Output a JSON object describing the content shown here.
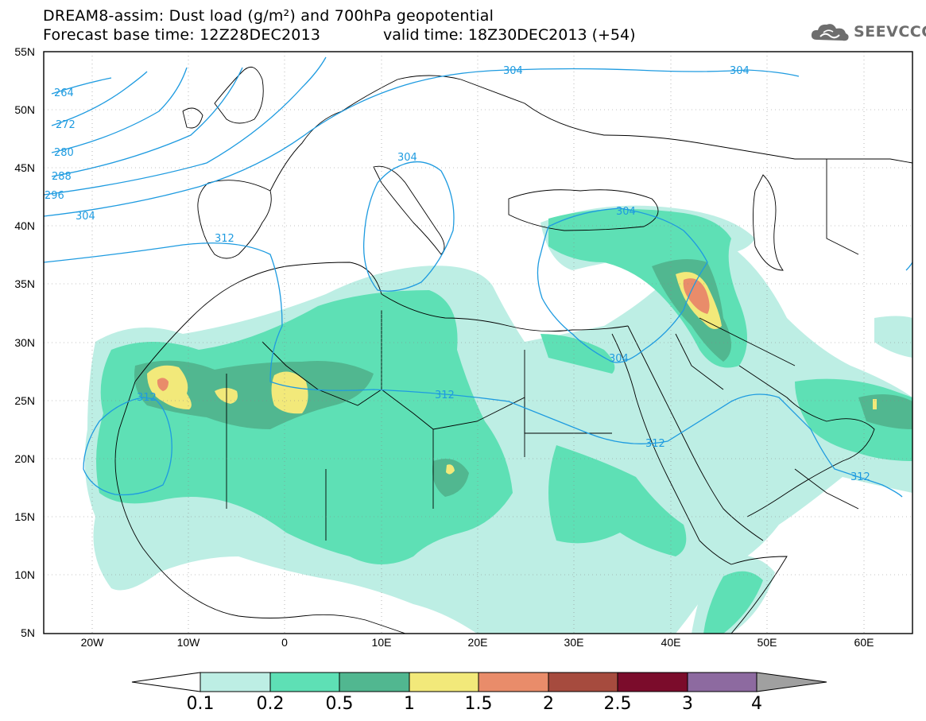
{
  "title": {
    "line1": "DREAM8-assim: Dust load (g/m²) and 700hPa geopotential",
    "line2a": "Forecast base time: 12Z28DEC2013",
    "line2b": "valid time: 18Z30DEC2013 (+54)"
  },
  "logo": {
    "text": "SEEVCCC",
    "icon": "cloud-icon"
  },
  "map": {
    "lon_range": [
      -25,
      65
    ],
    "lat_range": [
      5,
      55
    ],
    "lat_ticks": [
      "55N",
      "50N",
      "45N",
      "40N",
      "35N",
      "30N",
      "25N",
      "20N",
      "15N",
      "10N",
      "5N"
    ],
    "lon_ticks": [
      "20W",
      "10W",
      "0",
      "10E",
      "20E",
      "30E",
      "40E",
      "50E",
      "60E"
    ],
    "contour_labels": [
      "264",
      "272",
      "280",
      "288",
      "296",
      "304",
      "304",
      "304",
      "304",
      "304",
      "312",
      "312",
      "312",
      "312",
      "312",
      "304"
    ]
  },
  "colorbar": {
    "labels": [
      "0.1",
      "0.2",
      "0.5",
      "1",
      "1.5",
      "2",
      "2.5",
      "3",
      "4"
    ],
    "colors": [
      "#bdeee4",
      "#5ee0b5",
      "#51b790",
      "#f2e97a",
      "#e98c6a",
      "#a64b3e",
      "#7b0c2b",
      "#8d6aa0"
    ],
    "over_color": "#a0a0a0",
    "under_color": "#ffffff"
  },
  "dust_colors": {
    "c01": "#bdeee4",
    "c02": "#5ee0b5",
    "c05": "#51b790",
    "c1": "#f2e97a",
    "c15": "#e98c6a",
    "c2": "#a64b3e"
  },
  "contour_color": "#1e9be0"
}
